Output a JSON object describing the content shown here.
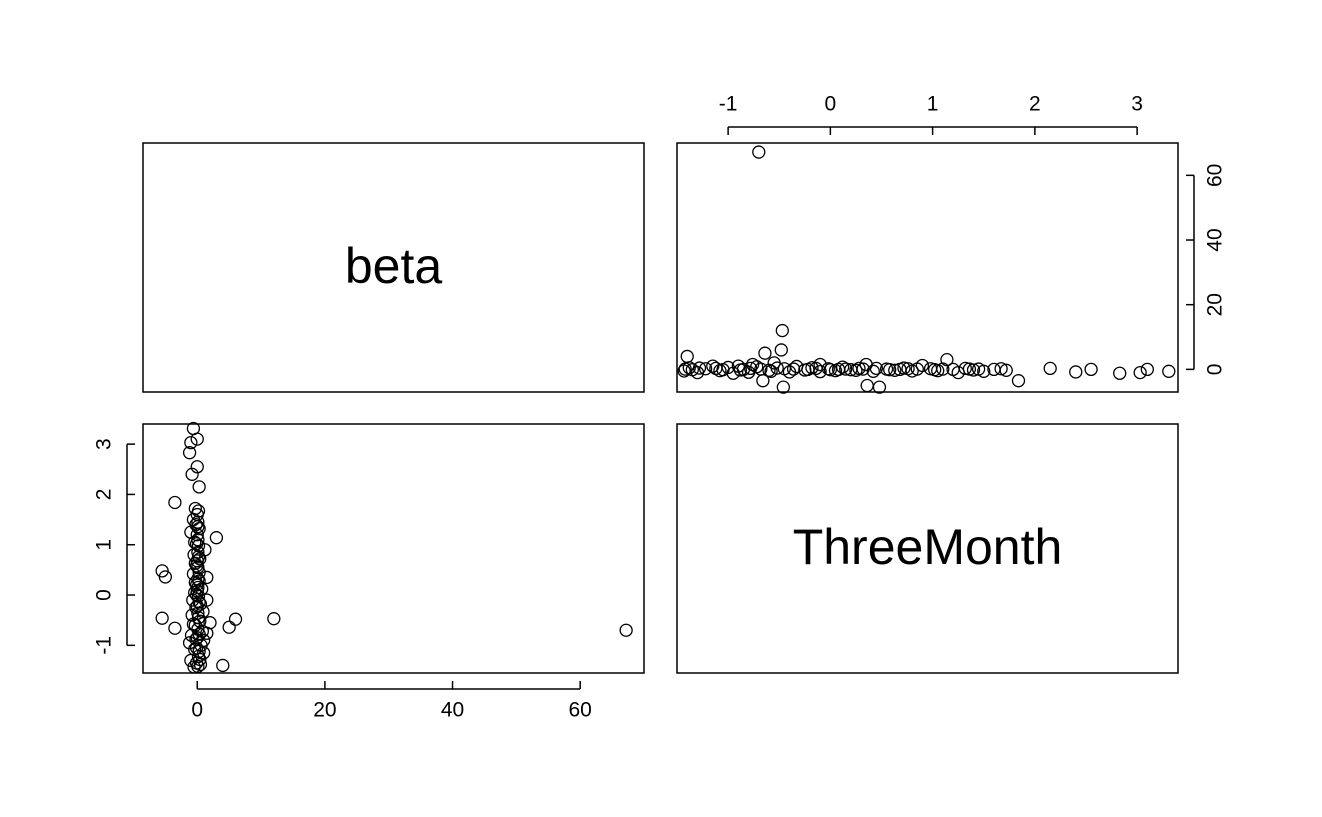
{
  "chart_data": {
    "type": "scatter",
    "title": "",
    "variables": [
      "beta",
      "ThreeMonth"
    ],
    "panels": [
      {
        "id": "diag-beta",
        "row": 0,
        "col": 0,
        "kind": "label",
        "label": "beta"
      },
      {
        "id": "threemonth-vs-beta",
        "row": 0,
        "col": 1,
        "kind": "scatter",
        "x_variable": "ThreeMonth",
        "y_variable": "beta",
        "xlim": [
          -1.5,
          3.4
        ],
        "ylim": [
          -7,
          70
        ],
        "x_ticks": [
          -1,
          0,
          1,
          2,
          3
        ],
        "x_tick_labels": [
          "-1",
          "0",
          "1",
          "2",
          "3"
        ],
        "x_axis_side": "top",
        "y_ticks": [
          0,
          20,
          40,
          60
        ],
        "y_tick_labels": [
          "0",
          "20",
          "40",
          "60"
        ],
        "y_axis_side": "right"
      },
      {
        "id": "beta-vs-threemonth",
        "row": 1,
        "col": 0,
        "kind": "scatter",
        "x_variable": "beta",
        "y_variable": "ThreeMonth",
        "xlim": [
          -8.5,
          70
        ],
        "ylim": [
          -1.55,
          3.4
        ],
        "x_ticks": [
          0,
          20,
          40,
          60
        ],
        "x_tick_labels": [
          "0",
          "20",
          "40",
          "60"
        ],
        "x_axis_side": "bottom",
        "y_ticks": [
          -1,
          0,
          1,
          2,
          3
        ],
        "y_tick_labels": [
          "-1",
          "0",
          "1",
          "2",
          "3"
        ],
        "y_axis_side": "left"
      },
      {
        "id": "diag-threemonth",
        "row": 1,
        "col": 1,
        "kind": "label",
        "label": "ThreeMonth"
      }
    ],
    "points": [
      {
        "threemonth": -0.7,
        "beta": 67.2
      },
      {
        "threemonth": -0.47,
        "beta": 12.0
      },
      {
        "threemonth": -0.48,
        "beta": 6.0
      },
      {
        "threemonth": -0.64,
        "beta": 5.0
      },
      {
        "threemonth": -0.66,
        "beta": -3.5
      },
      {
        "threemonth": -0.46,
        "beta": -5.5
      },
      {
        "threemonth": 0.36,
        "beta": -5.0
      },
      {
        "threemonth": 0.48,
        "beta": -5.5
      },
      {
        "threemonth": 1.84,
        "beta": -3.5
      },
      {
        "threemonth": 1.14,
        "beta": 3.0
      },
      {
        "threemonth": -1.4,
        "beta": 4.0
      },
      {
        "threemonth": -0.55,
        "beta": 2.0
      },
      {
        "threemonth": -0.76,
        "beta": 1.5
      },
      {
        "threemonth": -0.9,
        "beta": 1.0
      },
      {
        "threemonth": -0.1,
        "beta": 1.5
      },
      {
        "threemonth": 0.35,
        "beta": 1.5
      },
      {
        "threemonth": 0.9,
        "beta": 1.2
      },
      {
        "threemonth": 2.15,
        "beta": 0.3
      },
      {
        "threemonth": 2.4,
        "beta": -0.8
      },
      {
        "threemonth": 2.55,
        "beta": 0.0
      },
      {
        "threemonth": 2.83,
        "beta": -1.2
      },
      {
        "threemonth": 3.03,
        "beta": -1.0
      },
      {
        "threemonth": 3.1,
        "beta": 0.0
      },
      {
        "threemonth": 3.31,
        "beta": -0.6
      },
      {
        "threemonth": -1.43,
        "beta": -0.5
      },
      {
        "threemonth": -1.38,
        "beta": 0.5
      },
      {
        "threemonth": -1.3,
        "beta": -1.0
      },
      {
        "threemonth": -1.22,
        "beta": 0.2
      },
      {
        "threemonth": -1.15,
        "beta": 1.0
      },
      {
        "threemonth": -1.08,
        "beta": -0.4
      },
      {
        "threemonth": -1.0,
        "beta": 0.6
      },
      {
        "threemonth": -0.95,
        "beta": -1.2
      },
      {
        "threemonth": -0.85,
        "beta": 0.0
      },
      {
        "threemonth": -0.8,
        "beta": -0.9
      },
      {
        "threemonth": -0.72,
        "beta": 0.8
      },
      {
        "threemonth": -0.6,
        "beta": -0.3
      },
      {
        "threemonth": -0.52,
        "beta": 0.4
      },
      {
        "threemonth": -0.4,
        "beta": -0.8
      },
      {
        "threemonth": -0.33,
        "beta": 0.9
      },
      {
        "threemonth": -0.25,
        "beta": -0.2
      },
      {
        "threemonth": -0.18,
        "beta": 0.5
      },
      {
        "threemonth": -0.1,
        "beta": -0.7
      },
      {
        "threemonth": -0.02,
        "beta": 0.2
      },
      {
        "threemonth": 0.05,
        "beta": -0.4
      },
      {
        "threemonth": 0.12,
        "beta": 0.7
      },
      {
        "threemonth": 0.2,
        "beta": -0.1
      },
      {
        "threemonth": 0.28,
        "beta": 0.3
      },
      {
        "threemonth": 0.42,
        "beta": -0.6
      },
      {
        "threemonth": 0.55,
        "beta": 0.1
      },
      {
        "threemonth": 0.63,
        "beta": -0.3
      },
      {
        "threemonth": 0.72,
        "beta": 0.4
      },
      {
        "threemonth": 0.8,
        "beta": -0.5
      },
      {
        "threemonth": 0.98,
        "beta": 0.2
      },
      {
        "threemonth": 1.05,
        "beta": -0.4
      },
      {
        "threemonth": 1.2,
        "beta": 0.0
      },
      {
        "threemonth": 1.25,
        "beta": -1.0
      },
      {
        "threemonth": 1.32,
        "beta": 0.3
      },
      {
        "threemonth": 1.4,
        "beta": -0.2
      },
      {
        "threemonth": 1.5,
        "beta": -0.6
      },
      {
        "threemonth": 1.6,
        "beta": 0.0
      },
      {
        "threemonth": 1.67,
        "beta": 0.2
      },
      {
        "threemonth": 1.72,
        "beta": -0.3
      },
      {
        "threemonth": -1.35,
        "beta": -0.1
      },
      {
        "threemonth": -1.12,
        "beta": 0.3
      },
      {
        "threemonth": -0.88,
        "beta": -0.2
      },
      {
        "threemonth": -0.68,
        "beta": 0.1
      },
      {
        "threemonth": -0.45,
        "beta": 0.2
      },
      {
        "threemonth": -0.22,
        "beta": 0.0
      },
      {
        "threemonth": 0.0,
        "beta": -0.1
      },
      {
        "threemonth": 0.15,
        "beta": 0.1
      },
      {
        "threemonth": 0.25,
        "beta": -0.3
      },
      {
        "threemonth": 0.45,
        "beta": 0.3
      },
      {
        "threemonth": 0.68,
        "beta": 0.0
      },
      {
        "threemonth": 0.85,
        "beta": 0.1
      },
      {
        "threemonth": 1.1,
        "beta": 0.1
      },
      {
        "threemonth": 1.36,
        "beta": 0.1
      },
      {
        "threemonth": -1.42,
        "beta": 0.1
      },
      {
        "threemonth": -1.28,
        "beta": 0.4
      },
      {
        "threemonth": -1.05,
        "beta": -0.1
      },
      {
        "threemonth": -0.78,
        "beta": 0.3
      },
      {
        "threemonth": -0.58,
        "beta": -0.6
      },
      {
        "threemonth": -0.36,
        "beta": 0.1
      },
      {
        "threemonth": -0.14,
        "beta": 0.3
      },
      {
        "threemonth": 0.08,
        "beta": 0.0
      },
      {
        "threemonth": 0.32,
        "beta": 0.1
      },
      {
        "threemonth": 0.58,
        "beta": -0.1
      },
      {
        "threemonth": 0.76,
        "beta": 0.2
      },
      {
        "threemonth": 1.02,
        "beta": -0.1
      },
      {
        "threemonth": 1.45,
        "beta": 0.1
      }
    ]
  }
}
